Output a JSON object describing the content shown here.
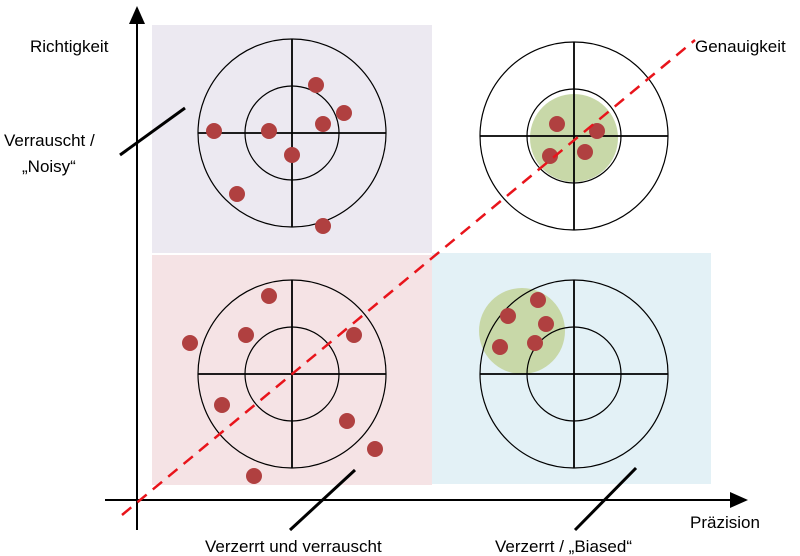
{
  "labels": {
    "y_axis": "Richtigkeit",
    "x_axis": "Präzision",
    "diagonal": "Genauigkeit",
    "noisy_line1": "Verrauscht /",
    "noisy_line2": "„Noisy“",
    "noisy_biased": "Verzerrt und verrauscht",
    "biased": "Verzerrt / „Biased“"
  },
  "colors": {
    "quadrant_noisy": "#ECE9F1",
    "quadrant_noisy_biased": "#F5E3E5",
    "quadrant_biased": "#E3F1F6",
    "cluster": "#C8D8A8",
    "dot": "#B04040",
    "diagonal": "#E8141B"
  }
}
